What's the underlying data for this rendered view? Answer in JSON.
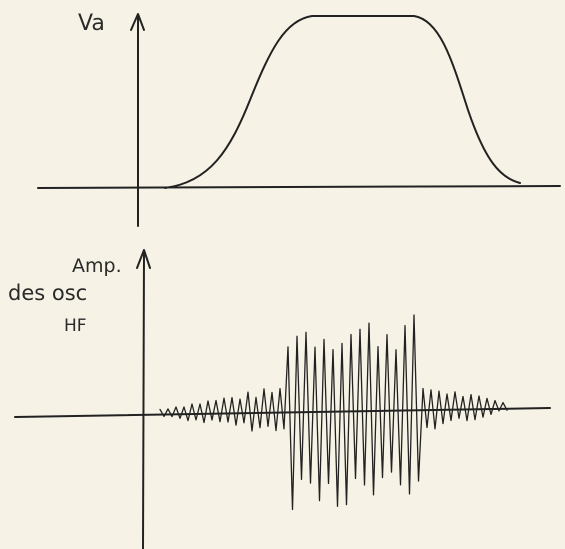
{
  "top_graph": {
    "y_label": "Va"
  },
  "bottom_graph": {
    "y_label_lines": [
      "Amp.",
      "des osc",
      "HF"
    ]
  }
}
